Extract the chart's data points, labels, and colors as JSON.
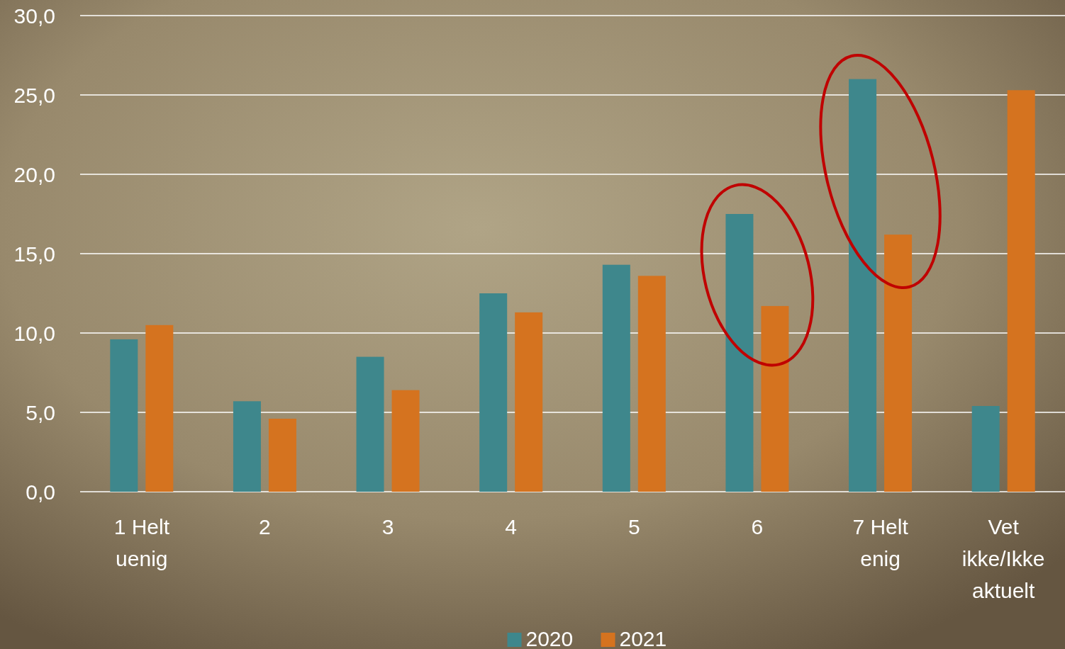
{
  "chart_data": {
    "type": "bar",
    "categories": [
      "1 Helt uenig",
      "2",
      "3",
      "4",
      "5",
      "6",
      "7 Helt enig",
      "Vet ikke/Ikke aktuelt"
    ],
    "series": [
      {
        "name": "2020",
        "color": "#3e878c",
        "values": [
          9.6,
          5.7,
          8.5,
          12.5,
          14.3,
          17.5,
          26.0,
          5.4
        ]
      },
      {
        "name": "2021",
        "color": "#d5731f",
        "values": [
          10.5,
          4.6,
          6.4,
          11.3,
          13.6,
          11.7,
          16.2,
          25.3
        ]
      }
    ],
    "ylim": [
      0,
      30
    ],
    "yticks": [
      {
        "value": 0,
        "label": "0,0"
      },
      {
        "value": 5,
        "label": "5,0"
      },
      {
        "value": 10,
        "label": "10,0"
      },
      {
        "value": 15,
        "label": "15,0"
      },
      {
        "value": 20,
        "label": "20,0"
      },
      {
        "value": 25,
        "label": "25,0"
      },
      {
        "value": 30,
        "label": "30,0"
      }
    ],
    "grid": "y",
    "legend": "bottom"
  }
}
